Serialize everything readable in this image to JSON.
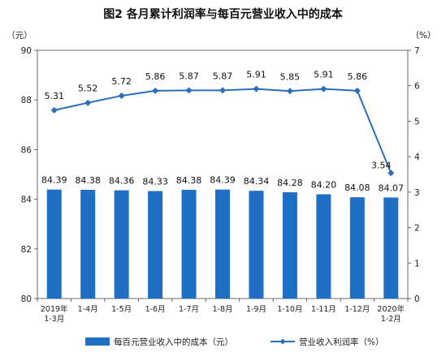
{
  "chart_data": {
    "type": "bar",
    "title": "图2  各月累计利润率与每百元营业收入中的成本",
    "y_left_unit": "（元）",
    "y_right_unit": "（%）",
    "y_left_range": [
      80,
      90
    ],
    "y_left_ticks": [
      "80",
      "82",
      "84",
      "86",
      "88",
      "90"
    ],
    "y_right_range": [
      0,
      7
    ],
    "y_right_ticks": [
      "0",
      "1",
      "2",
      "3",
      "4",
      "5",
      "6",
      "7"
    ],
    "categories": [
      [
        "2019年",
        "1-3月"
      ],
      [
        "1-4月"
      ],
      [
        "1-5月"
      ],
      [
        "1-6月"
      ],
      [
        "1-7月"
      ],
      [
        "1-8月"
      ],
      [
        "1-9月"
      ],
      [
        "1-10月"
      ],
      [
        "1-11月"
      ],
      [
        "1-12月"
      ],
      [
        "2020年",
        "1-2月"
      ]
    ],
    "series": [
      {
        "name": "每百元营业收入中的成本（元）",
        "type": "bar",
        "axis": "left",
        "color": "#1f6fc5",
        "values": [
          84.39,
          84.38,
          84.36,
          84.33,
          84.38,
          84.39,
          84.34,
          84.28,
          84.2,
          84.08,
          84.07
        ],
        "labels": [
          "84.39",
          "84.38",
          "84.36",
          "84.33",
          "84.38",
          "84.39",
          "84.34",
          "84.28",
          "84.20",
          "84.08",
          "84.07"
        ]
      },
      {
        "name": "营业收入利润率（%）",
        "type": "line",
        "axis": "right",
        "color": "#2a6ebb",
        "values": [
          5.31,
          5.52,
          5.72,
          5.86,
          5.87,
          5.87,
          5.91,
          5.85,
          5.91,
          5.86,
          3.54
        ],
        "labels": [
          "5.31",
          "5.52",
          "5.72",
          "5.86",
          "5.87",
          "5.87",
          "5.91",
          "5.85",
          "5.91",
          "5.86",
          "3.54"
        ]
      }
    ],
    "grid": false,
    "legend_position": "bottom"
  }
}
